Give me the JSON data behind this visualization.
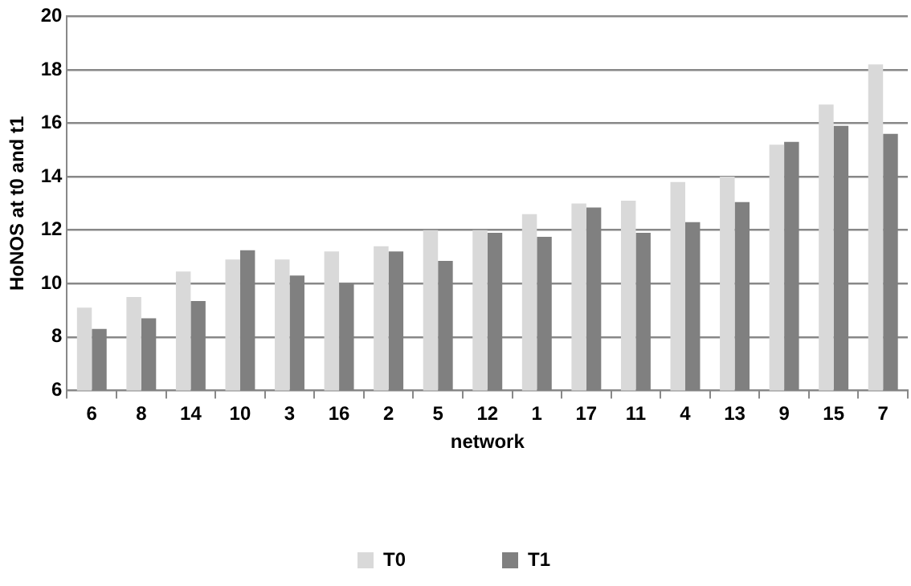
{
  "chart_data": {
    "type": "bar",
    "xlabel": "network",
    "ylabel": "HoNOS at t0 and t1",
    "categories": [
      "6",
      "8",
      "14",
      "10",
      "3",
      "16",
      "2",
      "5",
      "12",
      "1",
      "17",
      "11",
      "4",
      "13",
      "9",
      "15",
      "7"
    ],
    "series": [
      {
        "name": "T0",
        "color": "#d9d9d9",
        "values": [
          9.1,
          9.5,
          10.45,
          10.9,
          10.9,
          11.2,
          11.4,
          12.0,
          12.0,
          12.6,
          13.0,
          13.1,
          13.8,
          14.0,
          15.2,
          16.7,
          18.2
        ]
      },
      {
        "name": "T1",
        "color": "#808080",
        "values": [
          8.3,
          8.7,
          9.35,
          11.25,
          10.3,
          10.0,
          11.2,
          10.85,
          11.9,
          11.75,
          12.85,
          11.9,
          12.3,
          13.05,
          15.3,
          15.9,
          15.6
        ]
      }
    ],
    "ylim": [
      6,
      20
    ],
    "yticks": [
      6,
      8,
      10,
      12,
      14,
      16,
      18,
      20
    ],
    "grid": "y",
    "legend": "bottom"
  }
}
